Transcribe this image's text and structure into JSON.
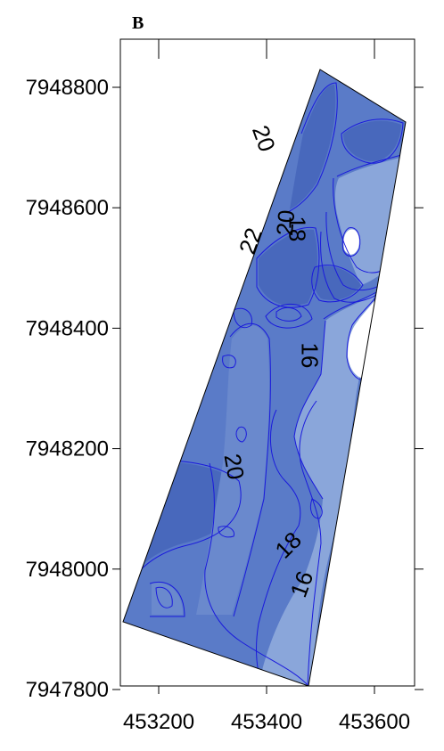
{
  "panel_label": "B",
  "chart_data": {
    "type": "heatmap",
    "title": "",
    "xlabel": "",
    "ylabel": "",
    "xlim": [
      453140,
      453610
    ],
    "ylim": [
      7947770,
      7948840
    ],
    "x_ticks": [
      {
        "value": 453200,
        "label": "453200"
      },
      {
        "value": 453400,
        "label": "453400"
      },
      {
        "value": 453600,
        "label": "453600"
      }
    ],
    "y_ticks": [
      {
        "value": 7947800,
        "label": "7947800"
      },
      {
        "value": 7948000,
        "label": "7948000"
      },
      {
        "value": 7948200,
        "label": "7948200"
      },
      {
        "value": 7948400,
        "label": "7948400"
      },
      {
        "value": 7948600,
        "label": "7948600"
      },
      {
        "value": 7948800,
        "label": "7948800"
      }
    ],
    "contour_labels": [
      {
        "text": "20",
        "x": 453395,
        "y": 7948715,
        "angle": 70
      },
      {
        "text": "22",
        "x": 453370,
        "y": 7948545,
        "angle": -70
      },
      {
        "text": "20",
        "x": 453435,
        "y": 7948575,
        "angle": -85
      },
      {
        "text": "18",
        "x": 453457,
        "y": 7948565,
        "angle": 90
      },
      {
        "text": "16",
        "x": 453480,
        "y": 7948355,
        "angle": 90
      },
      {
        "text": "20",
        "x": 453340,
        "y": 7948170,
        "angle": 80
      },
      {
        "text": "18",
        "x": 453440,
        "y": 7948040,
        "angle": -45
      },
      {
        "text": "16",
        "x": 453465,
        "y": 7947975,
        "angle": -70
      }
    ],
    "colors": {
      "base": "#5a7bc8",
      "dark": "#4868bc",
      "mid": "#6a89cd",
      "light": "#8aa6da",
      "contour_line": "#1a1adc",
      "blank": "#ffffff"
    }
  }
}
